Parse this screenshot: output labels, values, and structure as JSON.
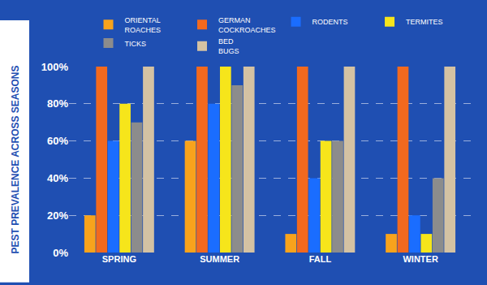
{
  "chart_data": {
    "type": "bar",
    "y_label": "PEST PREVALENCE ACROSS SEASONS",
    "categories": [
      "SPRING",
      "SUMMER",
      "FALL",
      "WINTER"
    ],
    "series": [
      {
        "name": "ORIENTAL ROACHES",
        "color": "#f8a31c",
        "values": [
          20,
          60,
          10,
          10
        ]
      },
      {
        "name": "GERMAN COCKROACHES",
        "color": "#f2691e",
        "values": [
          100,
          100,
          100,
          100
        ]
      },
      {
        "name": "RODENTS",
        "color": "#1a6dff",
        "values": [
          60,
          80,
          40,
          20
        ]
      },
      {
        "name": "TERMITES",
        "color": "#f6e51b",
        "values": [
          80,
          100,
          60,
          10
        ]
      },
      {
        "name": "TICKS",
        "color": "#8c8c8c",
        "values": [
          70,
          90,
          60,
          40
        ]
      },
      {
        "name": "BED BUGS",
        "color": "#d4c2a3",
        "values": [
          100,
          100,
          100,
          100
        ]
      }
    ],
    "ylim": [
      0,
      100
    ],
    "yticks": [
      {
        "value": 0,
        "label": "0%"
      },
      {
        "value": 20,
        "label": "20%"
      },
      {
        "value": 40,
        "label": "40%"
      },
      {
        "value": 60,
        "label": "60%"
      },
      {
        "value": 80,
        "label": "80%"
      },
      {
        "value": 100,
        "label": "100%"
      }
    ],
    "grid": true,
    "legend": "top"
  }
}
